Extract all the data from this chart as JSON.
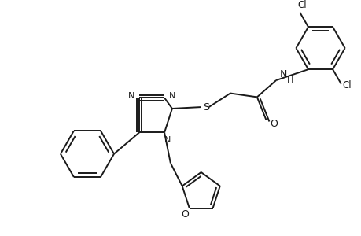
{
  "bg_color": "#ffffff",
  "line_color": "#1a1a1a",
  "bond_width": 1.4,
  "figsize": [
    4.6,
    3.0
  ],
  "dpi": 100,
  "xlim": [
    0,
    460
  ],
  "ylim": [
    0,
    300
  ]
}
